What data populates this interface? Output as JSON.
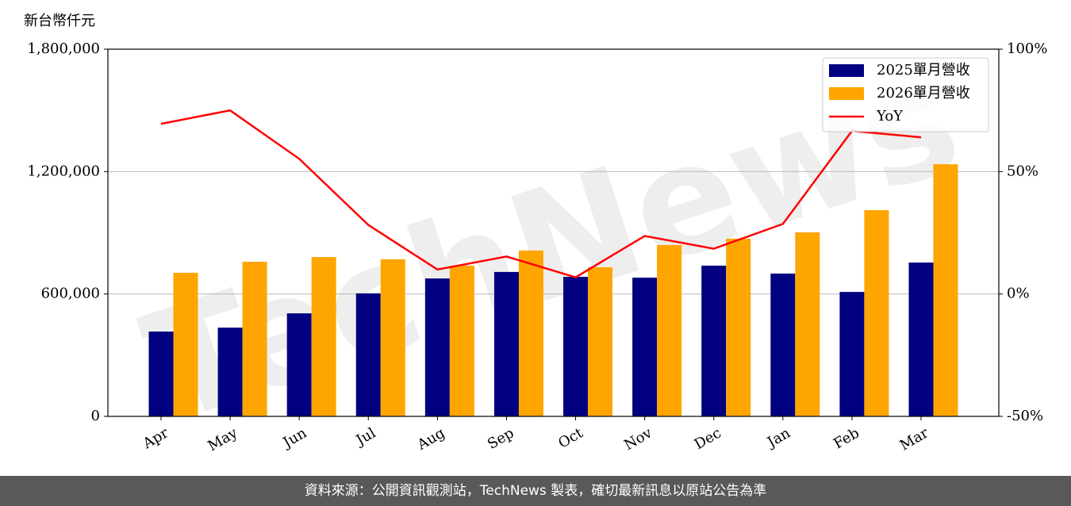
{
  "chart_data": {
    "type": "bar",
    "ylabel": "新台幣仟元",
    "watermark": "TechNews",
    "categories": [
      "Apr",
      "May",
      "Jun",
      "Jul",
      "Aug",
      "Sep",
      "Oct",
      "Nov",
      "Dec",
      "Jan",
      "Feb",
      "Mar"
    ],
    "series": [
      {
        "name": "2025單月營收",
        "color": "#000080",
        "values": [
          416000,
          435000,
          505000,
          603000,
          676000,
          708000,
          684000,
          680000,
          739000,
          700000,
          610000,
          754000
        ]
      },
      {
        "name": "2026單月營收",
        "color": "#ffa500",
        "values": [
          704000,
          758000,
          781000,
          770000,
          739000,
          813000,
          731000,
          840000,
          871000,
          902000,
          1011000,
          1236000
        ]
      },
      {
        "name": "YoY",
        "color": "#ff0000",
        "type": "line",
        "axis": "y2",
        "values": [
          69.5,
          75,
          55.2,
          28.2,
          10,
          15.3,
          6.8,
          23.7,
          18.5,
          28.6,
          66.6,
          64
        ]
      }
    ],
    "ylim": [
      0,
      1800000
    ],
    "yticks": [
      0,
      {
        "value": 600000,
        "label": "600,000"
      },
      {
        "value": 1200000,
        "label": "1,200,000"
      },
      {
        "value": 1800000,
        "label": "1,800,000"
      }
    ],
    "y2lim": [
      -50,
      100
    ],
    "y2ticks": [
      {
        "value": -50,
        "label": "-50%"
      },
      {
        "value": 0,
        "label": "0%"
      },
      {
        "value": 50,
        "label": "50%"
      },
      {
        "value": 100,
        "label": "100%"
      }
    ],
    "grid": true,
    "legend": "upper right"
  },
  "footer": "資料來源：公開資訊觀測站，TechNews 製表，確切最新訊息以原站公告為準"
}
